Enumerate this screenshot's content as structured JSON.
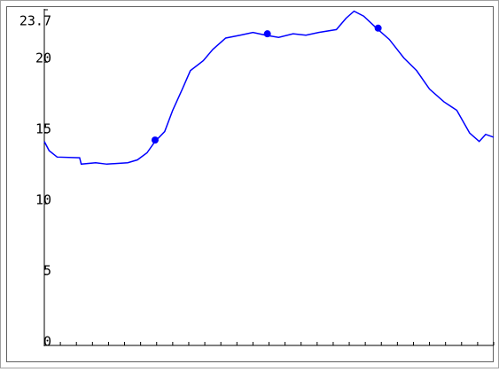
{
  "chart_data": {
    "type": "line",
    "x": [
      0,
      0.3,
      0.8,
      2.2,
      2.3,
      3.2,
      3.9,
      5.2,
      5.8,
      6.4,
      6.9,
      7.5,
      8.0,
      8.6,
      9.1,
      9.9,
      10.5,
      11.3,
      12.2,
      13.0,
      13.8,
      14.6,
      15.5,
      16.3,
      17.1,
      18.2,
      18.8,
      19.3,
      19.9,
      20.7,
      21.5,
      22.4,
      23.2,
      24.0,
      24.9,
      25.7,
      26.5,
      27.1,
      27.5,
      28
    ],
    "values": [
      14.4,
      13.75,
      13.3,
      13.25,
      12.8,
      12.9,
      12.8,
      12.9,
      13.1,
      13.6,
      14.4,
      15.1,
      16.6,
      18.1,
      19.4,
      20.1,
      20.9,
      21.7,
      21.9,
      22.1,
      21.9,
      21.75,
      22.0,
      21.9,
      22.1,
      22.3,
      23.1,
      23.6,
      23.25,
      22.4,
      21.6,
      20.3,
      19.4,
      18.1,
      17.2,
      16.6,
      15.0,
      14.4,
      14.9,
      14.7
    ],
    "color": "#0000ff",
    "markers": {
      "x": [
        6.9,
        13.9,
        20.8
      ],
      "values": [
        14.5,
        22.0,
        22.4
      ]
    },
    "xlim": [
      0,
      28
    ],
    "xticks": [
      0,
      1,
      2,
      3,
      4,
      5,
      6,
      7,
      8,
      9,
      10,
      11,
      12,
      13,
      14,
      15,
      16,
      17,
      18,
      19,
      20,
      21,
      22,
      23,
      24,
      25,
      26,
      27,
      28
    ],
    "ylim": [
      0,
      23.7
    ],
    "yticks": [
      0,
      5,
      10,
      15,
      20,
      23.7
    ]
  }
}
